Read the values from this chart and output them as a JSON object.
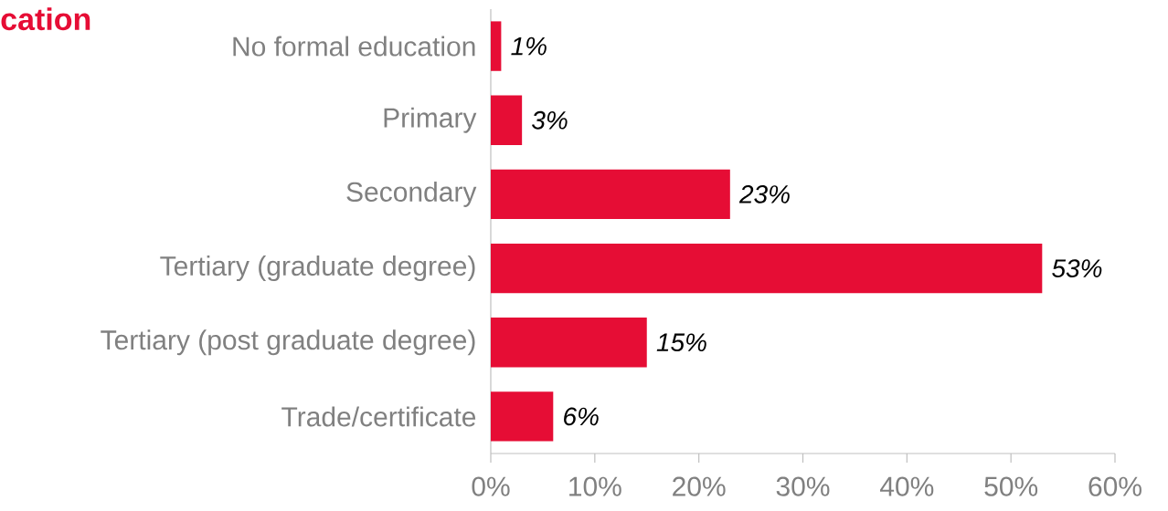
{
  "chart_data": {
    "type": "bar",
    "orientation": "horizontal",
    "title": "cation",
    "categories": [
      "No formal education",
      "Primary",
      "Secondary",
      "Tertiary (graduate degree)",
      "Tertiary (post graduate degree)",
      "Trade/certificate"
    ],
    "values": [
      1,
      3,
      23,
      53,
      15,
      6
    ],
    "value_labels": [
      "1%",
      "3%",
      "23%",
      "53%",
      "15%",
      "6%"
    ],
    "color": "#e60d35",
    "xlim": [
      0,
      60
    ],
    "xticks": [
      {
        "value": 0,
        "label": "0%"
      },
      {
        "value": 10,
        "label": "10%"
      },
      {
        "value": 20,
        "label": "20%"
      },
      {
        "value": 30,
        "label": "30%"
      },
      {
        "value": 40,
        "label": "40%"
      },
      {
        "value": 50,
        "label": "50%"
      },
      {
        "value": 60,
        "label": "60%"
      }
    ]
  }
}
